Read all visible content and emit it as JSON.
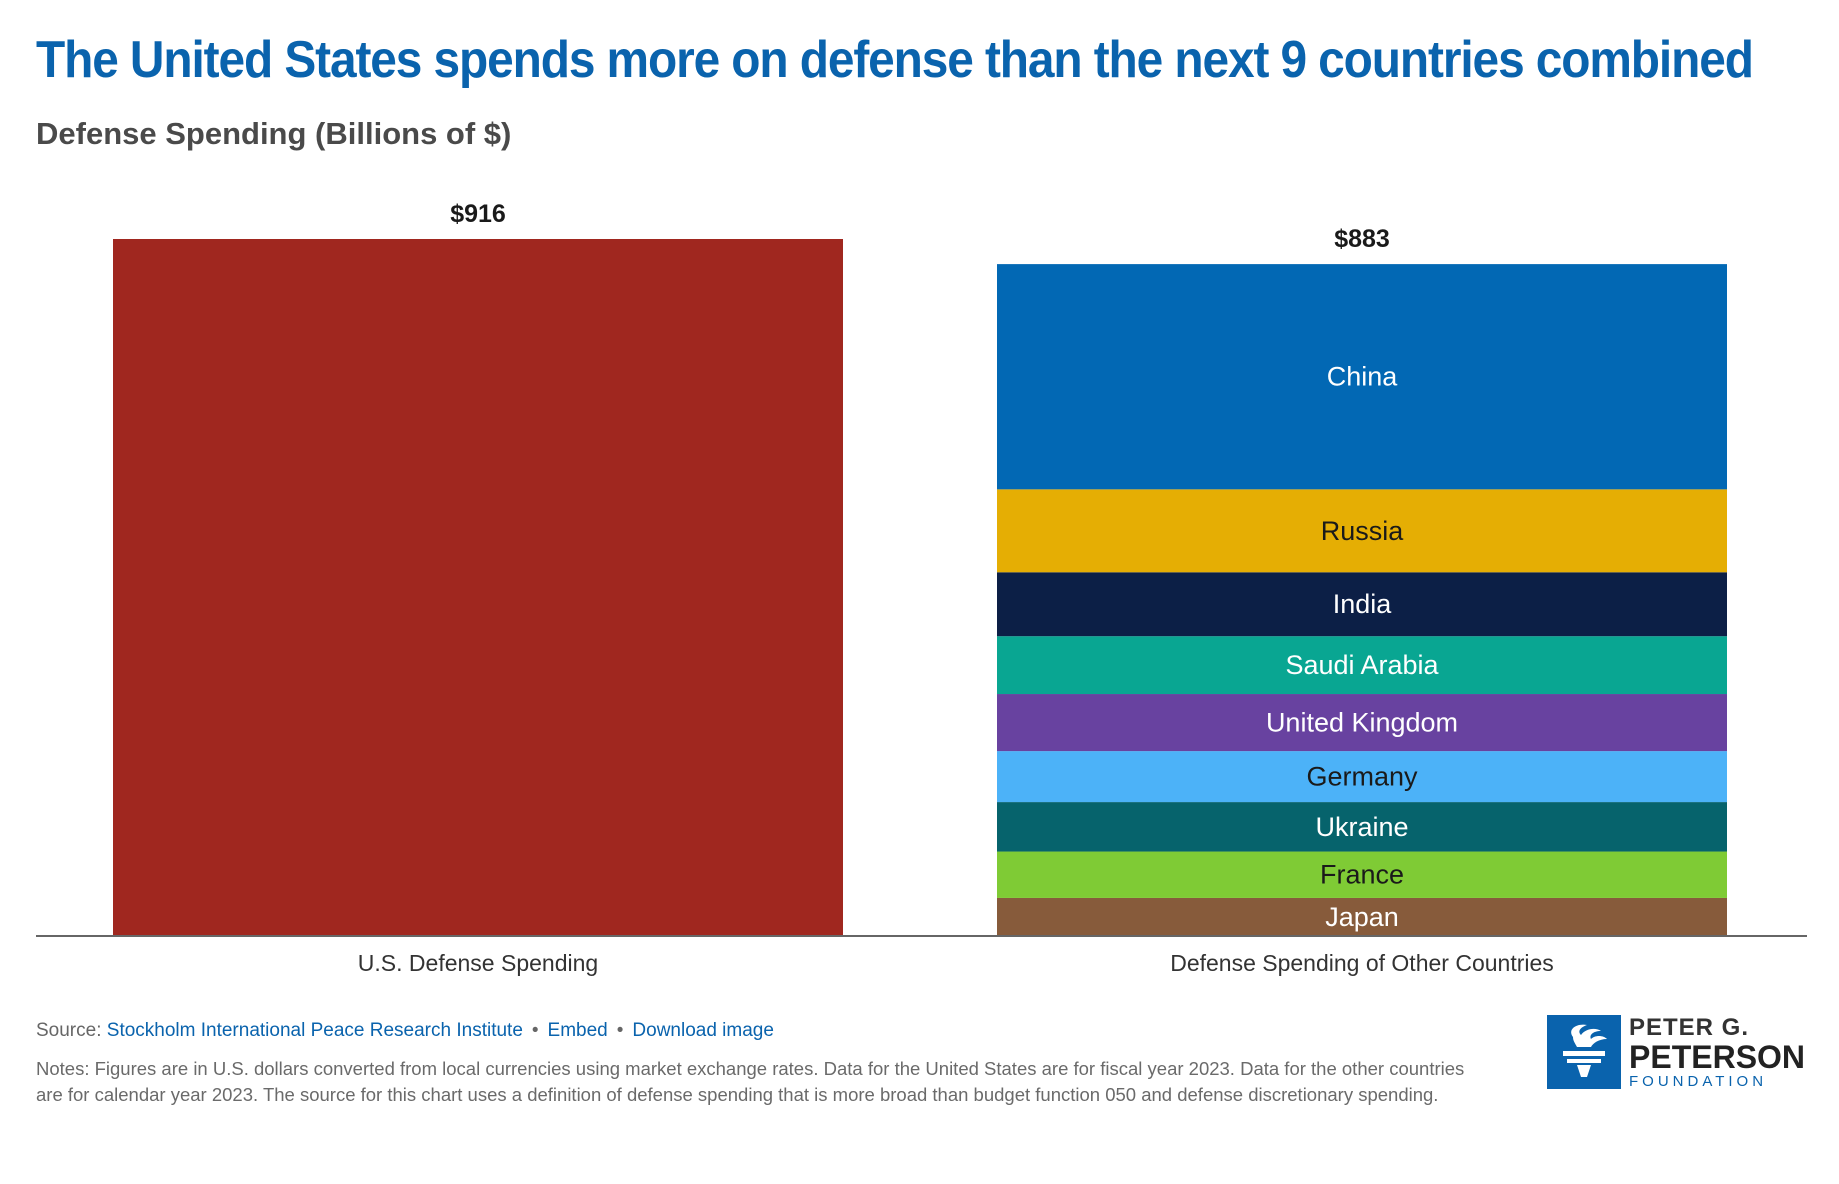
{
  "title": "The United States spends more on defense than the next 9 countries combined",
  "subtitle": "Defense Spending (Billions of $)",
  "chart_data": {
    "type": "bar",
    "stacked": true,
    "categories": [
      "U.S. Defense Spending",
      "Defense Spending of Other Countries"
    ],
    "totals": [
      916,
      883
    ],
    "total_labels": [
      "$916",
      "$883"
    ],
    "ylim": [
      0,
      916
    ],
    "grid": false,
    "us_color": "#a0271f",
    "segments": [
      {
        "name": "China",
        "value": 296,
        "color": "#0268b4",
        "text_color": "#ffffff"
      },
      {
        "name": "Russia",
        "value": 109,
        "color": "#e5ae04",
        "text_color": "#1a1a1a"
      },
      {
        "name": "India",
        "value": 84,
        "color": "#0c1f46",
        "text_color": "#ffffff"
      },
      {
        "name": "Saudi Arabia",
        "value": 76,
        "color": "#09a692",
        "text_color": "#ffffff"
      },
      {
        "name": "United Kingdom",
        "value": 75,
        "color": "#6842a0",
        "text_color": "#ffffff"
      },
      {
        "name": "Germany",
        "value": 67,
        "color": "#4cb2f8",
        "text_color": "#1a1a1a"
      },
      {
        "name": "Ukraine",
        "value": 65,
        "color": "#06636c",
        "text_color": "#ffffff"
      },
      {
        "name": "France",
        "value": 61,
        "color": "#7fcb35",
        "text_color": "#1a1a1a"
      },
      {
        "name": "Japan",
        "value": 50,
        "color": "#875b3b",
        "text_color": "#ffffff"
      }
    ]
  },
  "footer": {
    "source_label": "Source:",
    "source_link": "Stockholm International Peace Research Institute",
    "embed": "Embed",
    "download": "Download image",
    "notes": "Notes: Figures are in U.S. dollars converted from local currencies using market exchange rates. Data for the United States are for fiscal year 2023. Data for the other countries are for calendar year 2023. The source for this chart uses a definition of defense spending that is more broad than budget function 050 and defense discretionary spending."
  },
  "logo": {
    "line1": "PETER G.",
    "line2": "PETERSON",
    "line3": "FOUNDATION"
  }
}
